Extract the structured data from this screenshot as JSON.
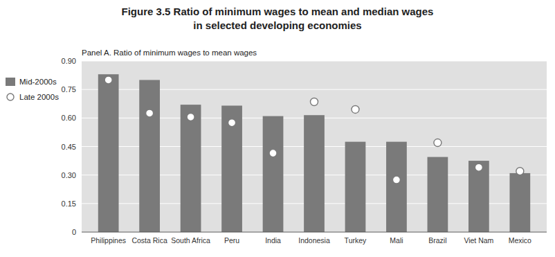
{
  "chart_data": {
    "type": "bar",
    "title": "Figure 3.5  Ratio of minimum wages to mean and median wages",
    "subtitle": "in selected developing economies",
    "annotations": [
      "Panel A. Ratio of minimum wages to mean wages"
    ],
    "categories": [
      "Philippines",
      "Costa Rica",
      "South Africa",
      "Peru",
      "India",
      "Indonesia",
      "Turkey",
      "Mali",
      "Brazil",
      "Viet Nam",
      "Mexico"
    ],
    "series": [
      {
        "name": "Mid-2000s",
        "type": "bar",
        "color": "#7a7a7a",
        "values": [
          0.83,
          0.8,
          0.67,
          0.665,
          0.61,
          0.615,
          0.475,
          0.475,
          0.395,
          0.375,
          0.31
        ]
      },
      {
        "name": "Late 2000s",
        "type": "scatter",
        "color": "#7a7a7a",
        "marker": "circle",
        "values": [
          0.8,
          0.625,
          0.605,
          0.575,
          0.415,
          0.685,
          0.645,
          0.275,
          0.47,
          0.34,
          0.32
        ]
      }
    ],
    "ylim": [
      0,
      0.9
    ],
    "yticks": [
      0,
      0.15,
      {
        "value": 0.3,
        "label": "0.30"
      },
      0.45,
      {
        "value": 0.6,
        "label": "0.60"
      },
      0.75,
      {
        "value": 0.9,
        "label": "0.90"
      }
    ],
    "grid": true,
    "legend": "left"
  }
}
